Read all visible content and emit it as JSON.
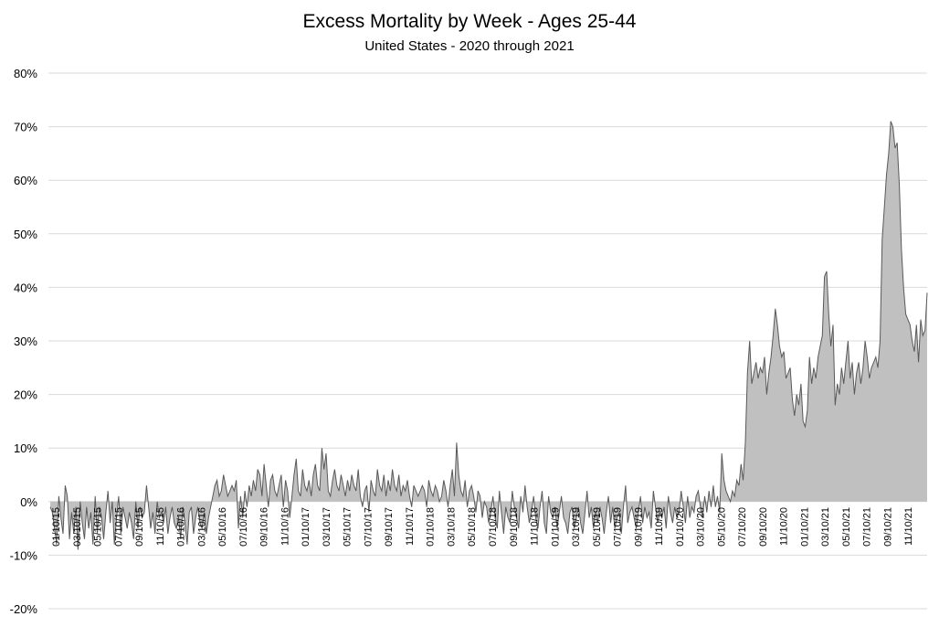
{
  "chart_data": {
    "type": "area",
    "title": "Excess Mortality by Week - Ages 25-44",
    "subtitle": "United States - 2020 through 2021",
    "xlabel": "",
    "ylabel": "",
    "ylim": [
      -20,
      80
    ],
    "y_ticks": [
      "80%",
      "70%",
      "60%",
      "50%",
      "40%",
      "30%",
      "20%",
      "10%",
      "0%",
      "-10%",
      "-20%"
    ],
    "y_tick_values": [
      80,
      70,
      60,
      50,
      40,
      30,
      20,
      10,
      0,
      -10,
      -20
    ],
    "x_tick_labels": [
      "01/10/15",
      "03/10/15",
      "05/10/15",
      "07/10/15",
      "09/10/15",
      "11/10/15",
      "01/10/16",
      "03/10/16",
      "05/10/16",
      "07/10/16",
      "09/10/16",
      "11/10/16",
      "01/10/17",
      "03/10/17",
      "05/10/17",
      "07/10/17",
      "09/10/17",
      "11/10/17",
      "01/10/18",
      "03/10/18",
      "05/10/18",
      "07/10/18",
      "09/10/18",
      "11/10/18",
      "01/10/19",
      "03/10/19",
      "05/10/19",
      "07/10/19",
      "09/10/19",
      "11/10/19",
      "01/10/20",
      "03/10/20",
      "05/10/20",
      "07/10/20",
      "09/10/20",
      "11/10/20",
      "01/10/21",
      "03/10/21",
      "05/10/21",
      "07/10/21",
      "09/10/21",
      "11/10/21"
    ],
    "grid": true,
    "legend": "none",
    "fill_color": "#c0c0c0",
    "line_color": "#595959",
    "start_week": "01/10/15",
    "interval": "weekly",
    "values": [
      -1,
      -2,
      -5,
      -8,
      1,
      -3,
      -6,
      3,
      1,
      -7,
      -2,
      -6,
      -1,
      -9,
      0,
      -4,
      -7,
      -1,
      -5,
      -2,
      -8,
      1,
      -6,
      -1,
      -3,
      -7,
      -2,
      2,
      -4,
      0,
      -8,
      -3,
      1,
      -6,
      -1,
      -3,
      -5,
      -2,
      -4,
      -7,
      0,
      -5,
      -1,
      -3,
      -2,
      3,
      -1,
      -5,
      -2,
      -6,
      0,
      -3,
      -2,
      -4,
      -1,
      -6,
      -3,
      -1,
      -4,
      -5,
      -3,
      -7,
      -1,
      -4,
      -8,
      -2,
      -1,
      -6,
      -3,
      -1,
      -4,
      -5,
      -2,
      -6,
      -3,
      -1,
      1,
      3,
      4,
      1,
      2,
      5,
      3,
      1,
      2,
      3,
      2,
      4,
      -5,
      1,
      -3,
      2,
      -1,
      3,
      1,
      4,
      2,
      6,
      5,
      1,
      7,
      3,
      -1,
      4,
      5,
      2,
      1,
      3,
      5,
      -1,
      4,
      2,
      -3,
      1,
      5,
      8,
      2,
      1,
      6,
      3,
      2,
      4,
      1,
      5,
      7,
      3,
      2,
      10,
      6,
      9,
      2,
      1,
      4,
      6,
      3,
      2,
      5,
      3,
      1,
      4,
      2,
      5,
      3,
      2,
      6,
      1,
      -1,
      2,
      3,
      -2,
      4,
      2,
      1,
      6,
      3,
      2,
      5,
      1,
      4,
      2,
      6,
      3,
      2,
      5,
      1,
      3,
      2,
      4,
      1,
      -1,
      3,
      2,
      1,
      2,
      3,
      2,
      -1,
      4,
      2,
      1,
      3,
      2,
      0,
      1,
      4,
      2,
      -1,
      3,
      6,
      1,
      11,
      5,
      2,
      1,
      4,
      -1,
      2,
      3,
      1,
      -2,
      2,
      1,
      -3,
      0,
      -1,
      -4,
      -2,
      1,
      -3,
      -5,
      2,
      -2,
      -6,
      -1,
      -3,
      -4,
      2,
      -1,
      -3,
      -5,
      1,
      -2,
      3,
      -1,
      -4,
      -2,
      1,
      -3,
      -5,
      -1,
      2,
      -4,
      -6,
      1,
      -2,
      -3,
      -1,
      -5,
      -2,
      1,
      -3,
      -4,
      -6,
      -2,
      -1,
      -5,
      -3,
      -1,
      -4,
      -6,
      -2,
      2,
      -3,
      -1,
      -5,
      -2,
      -4,
      -1,
      -3,
      -6,
      -2,
      1,
      -4,
      -1,
      -5,
      -3,
      -2,
      -6,
      -1,
      3,
      -4,
      -2,
      -1,
      -3,
      -5,
      -2,
      1,
      -4,
      -1,
      -3,
      -2,
      -5,
      2,
      -1,
      -4,
      -2,
      -3,
      -1,
      -5,
      1,
      -2,
      -4,
      -1,
      -3,
      -2,
      2,
      -1,
      -4,
      1,
      -3,
      -1,
      -2,
      1,
      2,
      -1,
      -3,
      1,
      -2,
      2,
      -1,
      3,
      -1,
      1,
      -2,
      9,
      4,
      2,
      1,
      0,
      2,
      1,
      4,
      3,
      7,
      4,
      11,
      24,
      30,
      22,
      24,
      26,
      23,
      25,
      24,
      27,
      20,
      24,
      27,
      31,
      36,
      33,
      29,
      27,
      28,
      23,
      24,
      25,
      19,
      16,
      20,
      18,
      22,
      15,
      14,
      17,
      27,
      22,
      25,
      23,
      27,
      29,
      31,
      42,
      43,
      35,
      29,
      33,
      18,
      22,
      20,
      25,
      22,
      26,
      30,
      23,
      26,
      20,
      24,
      26,
      22,
      25,
      30,
      27,
      23,
      25,
      26,
      27,
      25,
      30,
      49,
      55,
      61,
      65,
      71,
      70,
      66,
      67,
      59,
      47,
      40,
      35,
      34,
      33,
      30,
      28,
      33,
      26,
      34,
      31,
      32,
      39
    ]
  }
}
